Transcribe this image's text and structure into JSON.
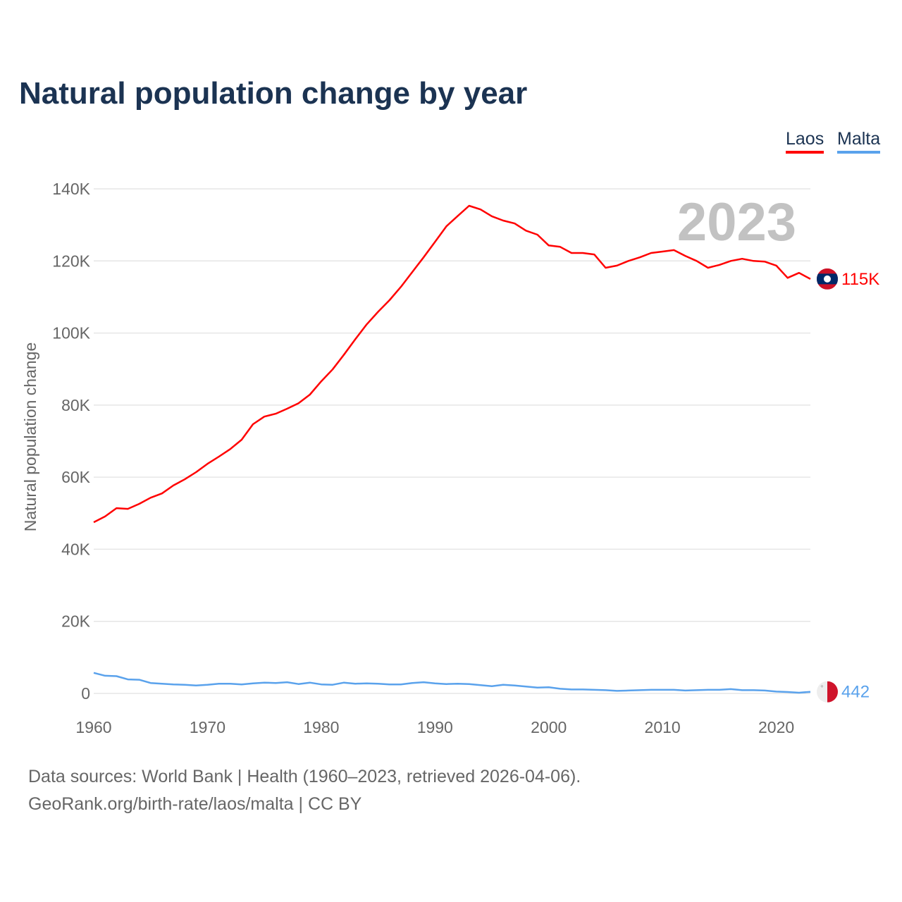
{
  "title": "Natural population change by year",
  "legend": [
    {
      "label": "Laos",
      "color": "#ff0000"
    },
    {
      "label": "Malta",
      "color": "#5aa2ec"
    }
  ],
  "year_watermark": "2023",
  "footer": {
    "line1": "Data sources: World Bank | Health (1960–2023, retrieved 2026-04-06).",
    "line2": "GeoRank.org/birth-rate/laos/malta | CC BY"
  },
  "chart_data": {
    "type": "line",
    "title": "Natural population change by year",
    "xlabel": "",
    "ylabel": "Natural population change",
    "xlim": [
      1960,
      2023
    ],
    "ylim": [
      0,
      140000
    ],
    "grid": true,
    "legend_position": "top-right",
    "x_ticks": [
      1960,
      1970,
      1980,
      1990,
      2000,
      2010,
      2020
    ],
    "x_tick_labels": [
      "1960",
      "1970",
      "1980",
      "1990",
      "2000",
      "2010",
      "2020"
    ],
    "y_ticks": [
      0,
      20000,
      40000,
      60000,
      80000,
      100000,
      120000,
      140000
    ],
    "y_tick_labels": [
      "0",
      "20K",
      "40K",
      "60K",
      "80K",
      "100K",
      "120K",
      "140K"
    ],
    "x_start": 1960,
    "series": [
      {
        "name": "Laos",
        "color": "#ff0000",
        "end_label": "115K",
        "flag": "laos-flag",
        "values": [
          47500,
          49100,
          51400,
          51200,
          52600,
          54300,
          55500,
          57700,
          59400,
          61400,
          63700,
          65700,
          67800,
          70400,
          74700,
          76800,
          77600,
          79000,
          80500,
          82900,
          86600,
          89900,
          94000,
          98300,
          102400,
          105900,
          109100,
          112800,
          116900,
          121000,
          125300,
          129600,
          132500,
          135300,
          134300,
          132400,
          131200,
          130400,
          128400,
          127300,
          124300,
          123900,
          122200,
          122200,
          121800,
          118100,
          118700,
          120000,
          121000,
          122200,
          122600,
          123000,
          121400,
          120000,
          118100,
          118900,
          120000,
          120600,
          120000,
          119800,
          118700,
          115300,
          116700,
          115000
        ]
      },
      {
        "name": "Malta",
        "color": "#5aa2ec",
        "end_label": "442",
        "flag": "malta-flag",
        "values": [
          5700,
          4900,
          4800,
          3900,
          3800,
          2900,
          2700,
          2500,
          2400,
          2200,
          2400,
          2700,
          2700,
          2500,
          2800,
          3000,
          2900,
          3100,
          2600,
          3000,
          2500,
          2400,
          3000,
          2700,
          2800,
          2700,
          2500,
          2500,
          2900,
          3100,
          2800,
          2600,
          2700,
          2600,
          2300,
          2000,
          2400,
          2200,
          1900,
          1600,
          1700,
          1300,
          1100,
          1100,
          1000,
          900,
          700,
          800,
          900,
          1000,
          1000,
          1000,
          800,
          900,
          1000,
          1000,
          1200,
          900,
          900,
          800,
          500,
          400,
          200,
          442
        ]
      }
    ]
  }
}
